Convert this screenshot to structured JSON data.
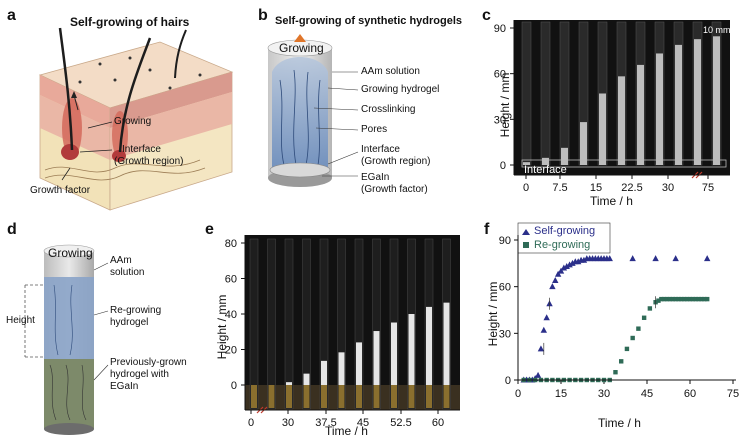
{
  "panels": {
    "a": {
      "label": "a",
      "title": "Self-growing of hairs",
      "callouts": [
        "Growing",
        "Interface",
        "(Growth region)",
        "Growth factor"
      ]
    },
    "b": {
      "label": "b",
      "title": "Self-growing of synthetic hydrogels",
      "top_label": "Growing",
      "callouts": [
        "AAm solution",
        "Growing hydrogel",
        "Crosslinking",
        "Pores",
        "Interface",
        "(Growth region)",
        "EGaIn",
        "(Growth factor)"
      ]
    },
    "c": {
      "label": "c",
      "scale_bar": "10 mm",
      "interface_label": "Interface",
      "ylabel": "Height / mm",
      "xlabel": "Time / h",
      "yticks": [
        "0",
        "30",
        "60",
        "90"
      ],
      "xticks": [
        "0",
        "7.5",
        "15",
        "22.5",
        "30",
        "75"
      ]
    },
    "d": {
      "label": "d",
      "top_label": "Growing",
      "height_label": "Height",
      "callouts": [
        "AAm",
        "solution",
        "Re-growing",
        "hydrogel",
        "Previously-grown",
        "hydrogel with",
        "EGaIn"
      ]
    },
    "e": {
      "label": "e",
      "ylabel": "Height / mm",
      "xlabel": "Time / h",
      "yticks": [
        "0",
        "20",
        "40",
        "60",
        "80"
      ],
      "xticks": [
        "0",
        "30",
        "37.5",
        "45",
        "52.5",
        "60"
      ]
    },
    "f": {
      "label": "f",
      "ylabel": "Height / mm",
      "xlabel": "Time / h",
      "yticks": [
        "0",
        "30",
        "60",
        "90"
      ],
      "xticks": [
        "0",
        "15",
        "30",
        "45",
        "60",
        "75"
      ],
      "legend": [
        "Self-growing",
        "Re-growing"
      ]
    }
  },
  "colors": {
    "self_growing": "#2b2f8a",
    "re_growing": "#2f6b57",
    "hydrogel_blue": "#7f9cc4",
    "skin_pink": "#e9a99a",
    "gold": "#c89a3a"
  },
  "chart_data": [
    {
      "type": "scatter",
      "title": "",
      "xlabel": "Time / h",
      "ylabel": "Height / mm",
      "xlim": [
        0,
        75
      ],
      "ylim": [
        0,
        90
      ],
      "legend_position": "top-left",
      "series": [
        {
          "name": "Self-growing",
          "x": [
            2,
            3,
            4,
            5,
            6,
            7,
            8,
            9,
            10,
            11,
            12,
            13,
            14,
            15,
            16,
            17,
            18,
            19,
            20,
            21,
            22,
            23,
            24,
            25,
            26,
            27,
            28,
            29,
            30,
            31,
            32,
            40,
            48,
            55,
            66
          ],
          "y": [
            0,
            0,
            0,
            0,
            1,
            3,
            20,
            32,
            40,
            49,
            60,
            64,
            68,
            70,
            72,
            73,
            74,
            75,
            76,
            76,
            77,
            77,
            78,
            78,
            78,
            78,
            78,
            78,
            78,
            78,
            78,
            78,
            78,
            78,
            78
          ]
        },
        {
          "name": "Re-growing",
          "x": [
            2,
            4,
            6,
            8,
            10,
            12,
            14,
            16,
            18,
            20,
            22,
            24,
            26,
            28,
            30,
            32,
            34,
            36,
            38,
            40,
            42,
            44,
            46,
            48,
            49,
            50,
            51,
            52,
            53,
            54,
            55,
            56,
            57,
            58,
            59,
            60,
            61,
            62,
            63,
            64,
            65,
            66
          ],
          "y": [
            0,
            0,
            0,
            0,
            0,
            0,
            0,
            0,
            0,
            0,
            0,
            0,
            0,
            0,
            0,
            0,
            5,
            12,
            20,
            27,
            33,
            40,
            46,
            50,
            51,
            52,
            52,
            52,
            52,
            52,
            52,
            52,
            52,
            52,
            52,
            52,
            52,
            52,
            52,
            52,
            52,
            52
          ]
        }
      ]
    }
  ]
}
